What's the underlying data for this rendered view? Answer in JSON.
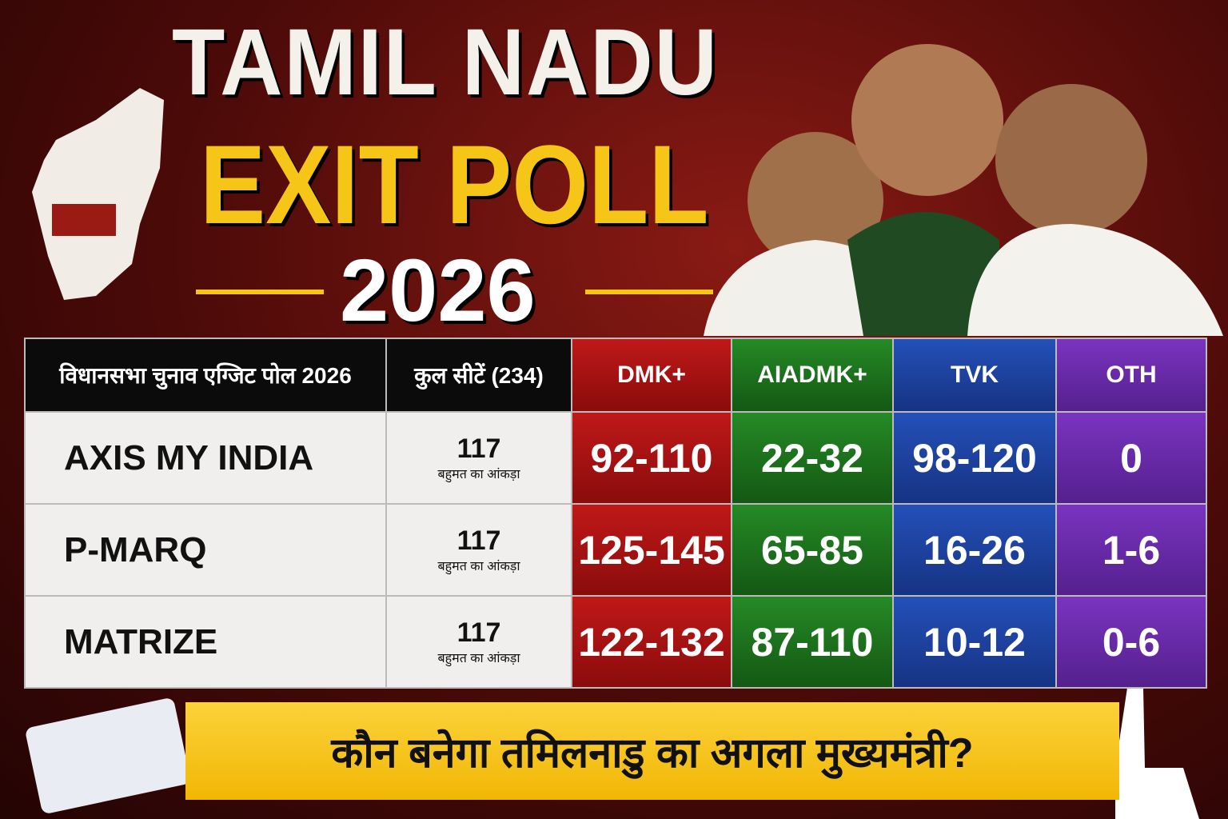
{
  "header": {
    "title_line1": "TAMIL NADU",
    "title_line2": "EXIT POLL",
    "year": "2026"
  },
  "table": {
    "columns": [
      "विधानसभा चुनाव एग्जिट पोल 2026",
      "कुल सीटें (234)",
      "DMK+",
      "AIADMK+",
      "TVK",
      "OTH"
    ],
    "rows": [
      {
        "agency": "AXIS MY INDIA",
        "majority": "117",
        "majority_label": "बहुमत का आंकड़ा",
        "results": [
          "92-110",
          "22-32",
          "98-120",
          "0"
        ]
      },
      {
        "agency": "P-MARQ",
        "majority": "117",
        "majority_label": "बहुमत का आंकड़ा",
        "results": [
          "125-145",
          "65-85",
          "16-26",
          "1-6"
        ]
      },
      {
        "agency": "MATRIZE",
        "majority": "117",
        "majority_label": "बहुमत का आंकड़ा",
        "results": [
          "122-132",
          "87-110",
          "10-12",
          "0-6"
        ]
      }
    ]
  },
  "footer": {
    "question": "कौन बनेगा तमिलनाडु का अगला मुख्यमंत्री?"
  }
}
